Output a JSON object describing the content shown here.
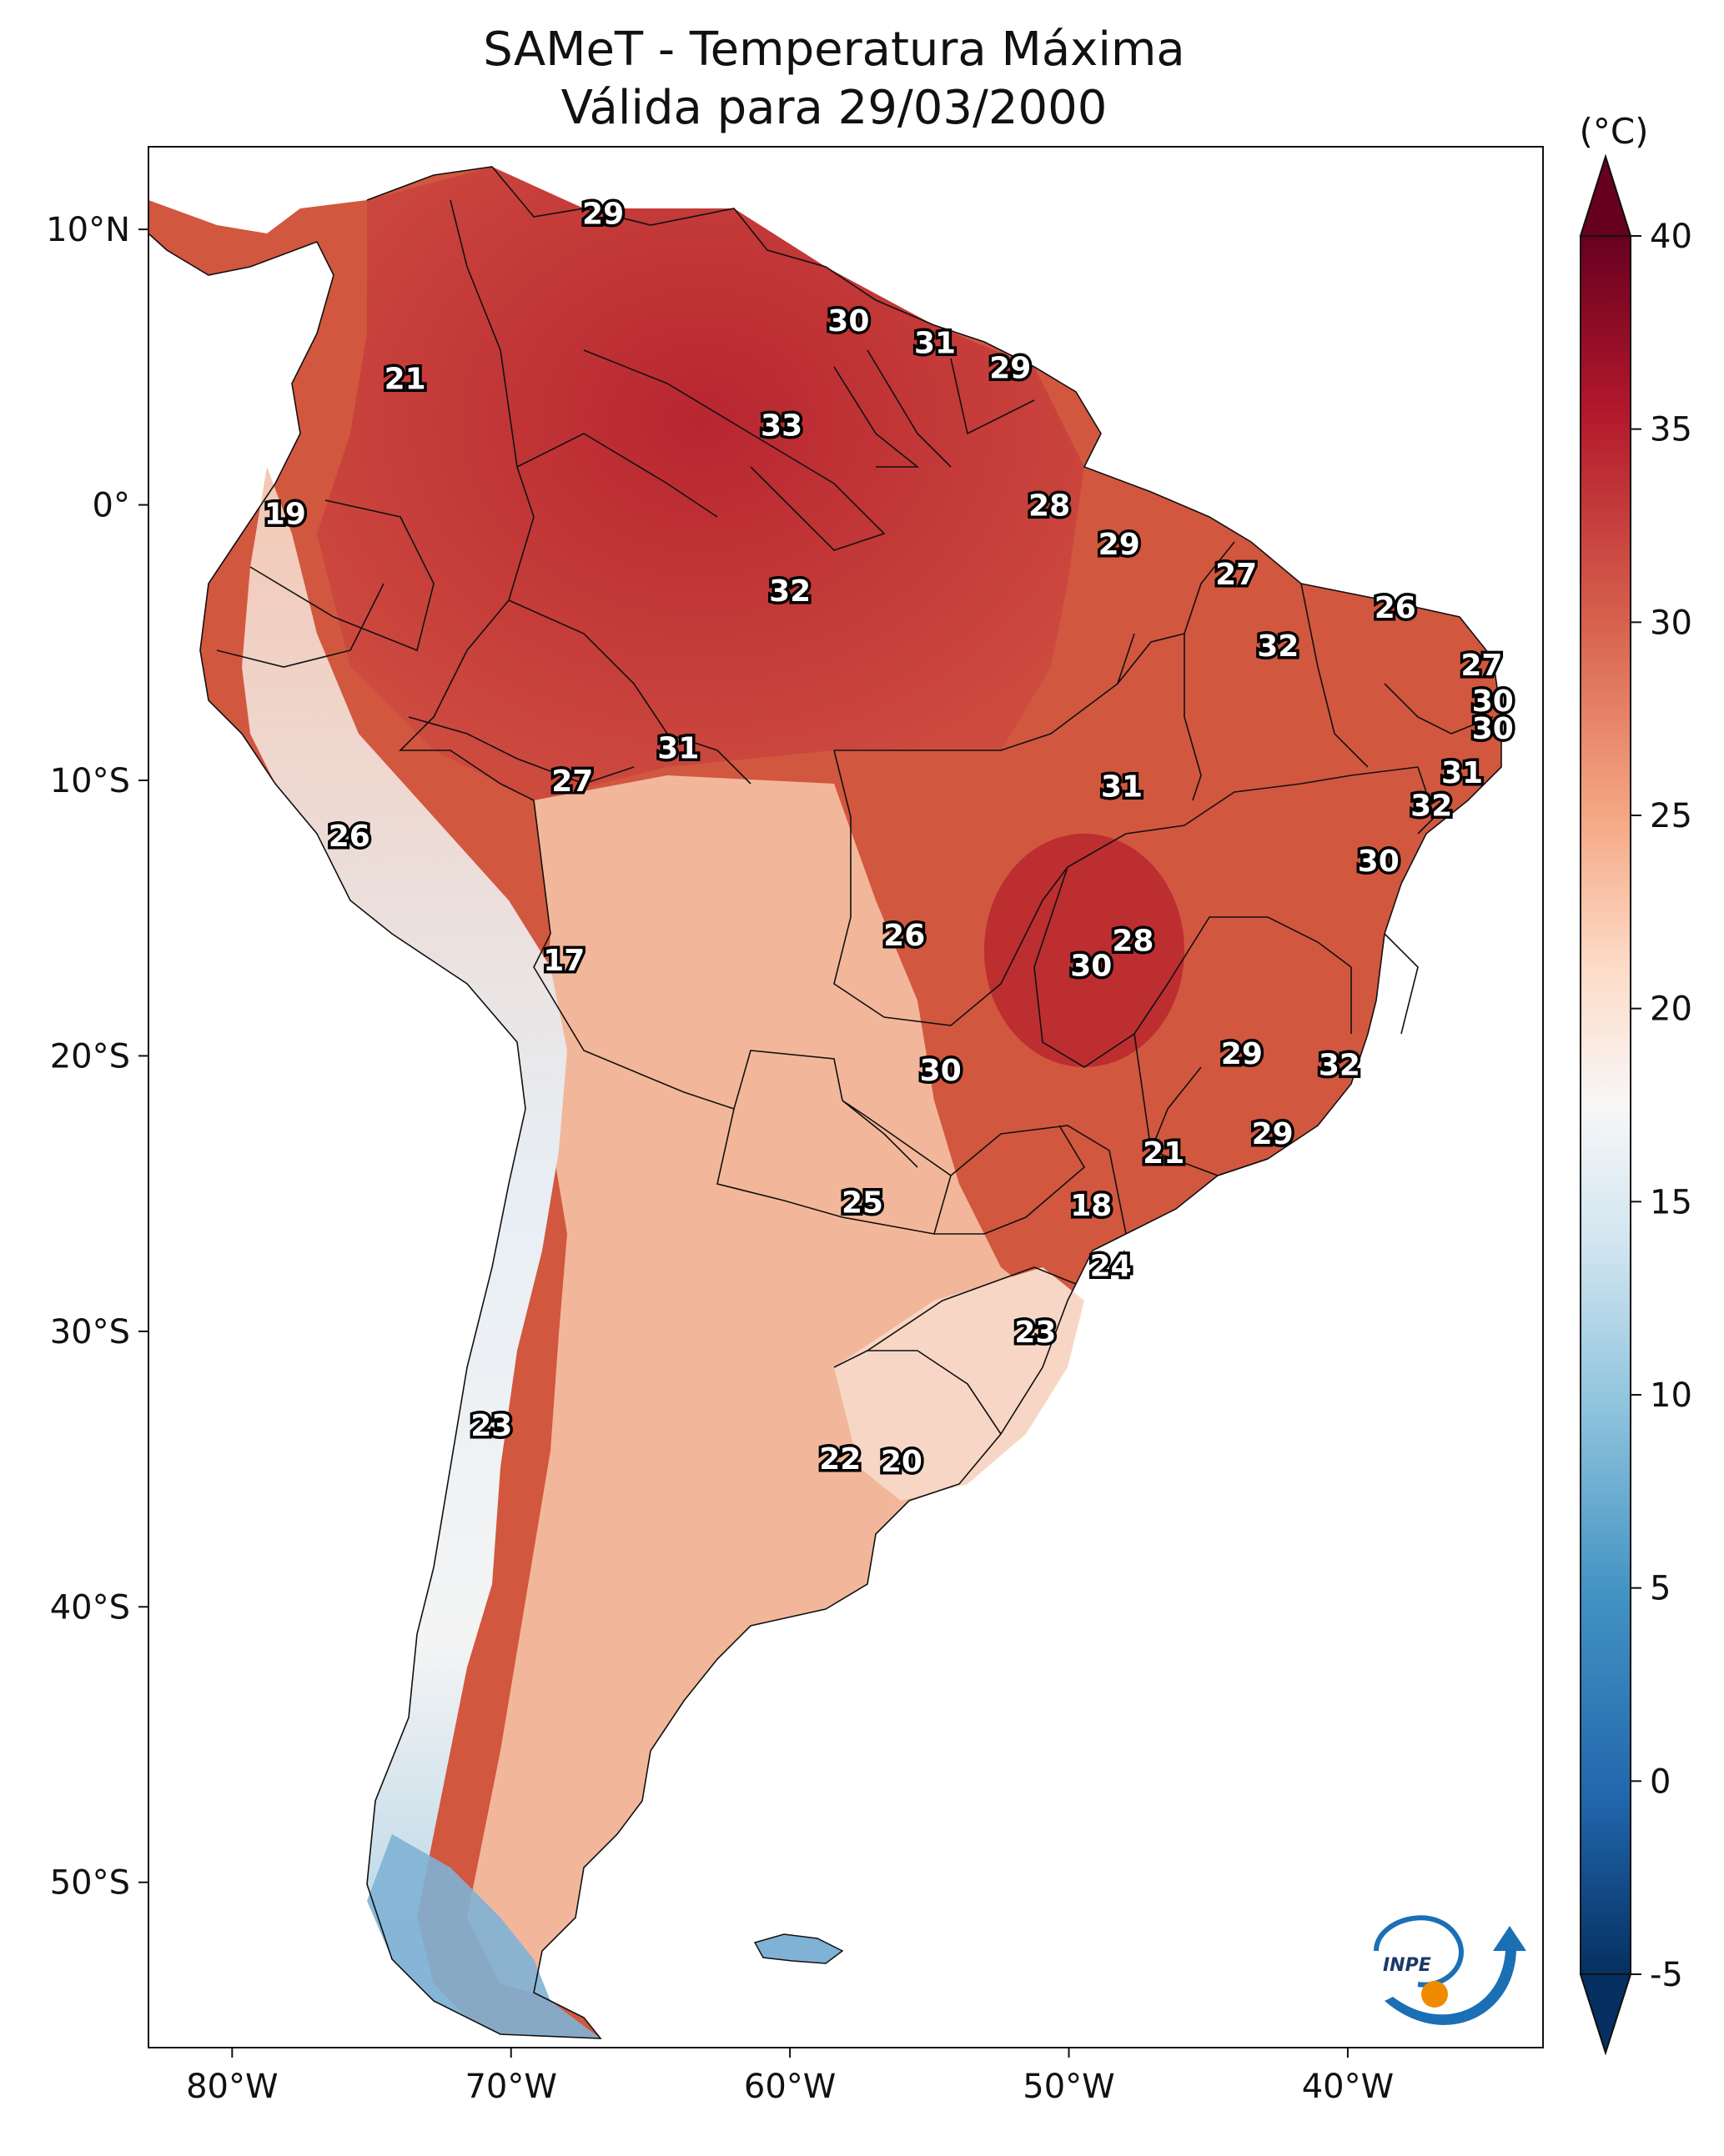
{
  "title_line1": "SAMeT - Temperatura Máxima",
  "title_line2": "Válida para 29/03/2000",
  "colorbar": {
    "unit": "(°C)",
    "min": -5,
    "max": 40,
    "ticks": [
      "40",
      "35",
      "30",
      "25",
      "20",
      "15",
      "10",
      "5",
      "0",
      "-5"
    ],
    "tick_values": [
      40,
      35,
      30,
      25,
      20,
      15,
      10,
      5,
      0,
      -5
    ],
    "colors": [
      "#053061",
      "#2166ac",
      "#4393c3",
      "#92c5de",
      "#d1e5f0",
      "#f7f7f7",
      "#fddbc7",
      "#f4a582",
      "#d6604d",
      "#b2182b",
      "#67001f"
    ]
  },
  "axes": {
    "lat_ticks": [
      {
        "label": "10°N",
        "value": 10
      },
      {
        "label": "0°",
        "value": 0
      },
      {
        "label": "10°S",
        "value": -10
      },
      {
        "label": "20°S",
        "value": -20
      },
      {
        "label": "30°S",
        "value": -30
      },
      {
        "label": "40°S",
        "value": -40
      },
      {
        "label": "50°S",
        "value": -50
      }
    ],
    "lon_ticks": [
      {
        "label": "80°W",
        "value": -80
      },
      {
        "label": "70°W",
        "value": -70
      },
      {
        "label": "60°W",
        "value": -60
      },
      {
        "label": "50°W",
        "value": -50
      },
      {
        "label": "40°W",
        "value": -40
      }
    ],
    "lon_range": [
      -83,
      -33
    ],
    "lat_range": [
      -56,
      13
    ]
  },
  "station_labels": [
    {
      "text": "29",
      "lon": -66.7,
      "lat": 10.6
    },
    {
      "text": "30",
      "lon": -57.9,
      "lat": 6.7
    },
    {
      "text": "31",
      "lon": -54.8,
      "lat": 5.9
    },
    {
      "text": "29",
      "lon": -52.1,
      "lat": 5.0
    },
    {
      "text": "21",
      "lon": -73.8,
      "lat": 4.6
    },
    {
      "text": "33",
      "lon": -60.3,
      "lat": 2.9
    },
    {
      "text": "28",
      "lon": -50.7,
      "lat": 0.0
    },
    {
      "text": "19",
      "lon": -78.1,
      "lat": -0.3
    },
    {
      "text": "29",
      "lon": -48.2,
      "lat": -1.4
    },
    {
      "text": "27",
      "lon": -44.0,
      "lat": -2.5
    },
    {
      "text": "32",
      "lon": -60.0,
      "lat": -3.1
    },
    {
      "text": "26",
      "lon": -38.3,
      "lat": -3.7
    },
    {
      "text": "32",
      "lon": -42.5,
      "lat": -5.1
    },
    {
      "text": "27",
      "lon": -35.2,
      "lat": -5.8
    },
    {
      "text": "30",
      "lon": -34.8,
      "lat": -7.1
    },
    {
      "text": "30",
      "lon": -34.8,
      "lat": -8.1
    },
    {
      "text": "31",
      "lon": -64.0,
      "lat": -8.8
    },
    {
      "text": "31",
      "lon": -35.9,
      "lat": -9.7
    },
    {
      "text": "27",
      "lon": -67.8,
      "lat": -10.0
    },
    {
      "text": "31",
      "lon": -48.1,
      "lat": -10.2
    },
    {
      "text": "32",
      "lon": -37.0,
      "lat": -10.9
    },
    {
      "text": "26",
      "lon": -75.8,
      "lat": -12.0
    },
    {
      "text": "30",
      "lon": -38.9,
      "lat": -12.9
    },
    {
      "text": "26",
      "lon": -55.9,
      "lat": -15.6
    },
    {
      "text": "28",
      "lon": -47.7,
      "lat": -15.8
    },
    {
      "text": "17",
      "lon": -68.1,
      "lat": -16.5
    },
    {
      "text": "30",
      "lon": -49.2,
      "lat": -16.7
    },
    {
      "text": "29",
      "lon": -43.8,
      "lat": -19.9
    },
    {
      "text": "32",
      "lon": -40.3,
      "lat": -20.3
    },
    {
      "text": "30",
      "lon": -54.6,
      "lat": -20.5
    },
    {
      "text": "29",
      "lon": -42.7,
      "lat": -22.8
    },
    {
      "text": "21",
      "lon": -46.6,
      "lat": -23.5
    },
    {
      "text": "25",
      "lon": -57.4,
      "lat": -25.3
    },
    {
      "text": "18",
      "lon": -49.2,
      "lat": -25.4
    },
    {
      "text": "24",
      "lon": -48.5,
      "lat": -27.6
    },
    {
      "text": "23",
      "lon": -51.2,
      "lat": -30.0
    },
    {
      "text": "23",
      "lon": -70.7,
      "lat": -33.4
    },
    {
      "text": "22",
      "lon": -58.2,
      "lat": -34.6
    },
    {
      "text": "20",
      "lon": -56.0,
      "lat": -34.7
    }
  ]
}
